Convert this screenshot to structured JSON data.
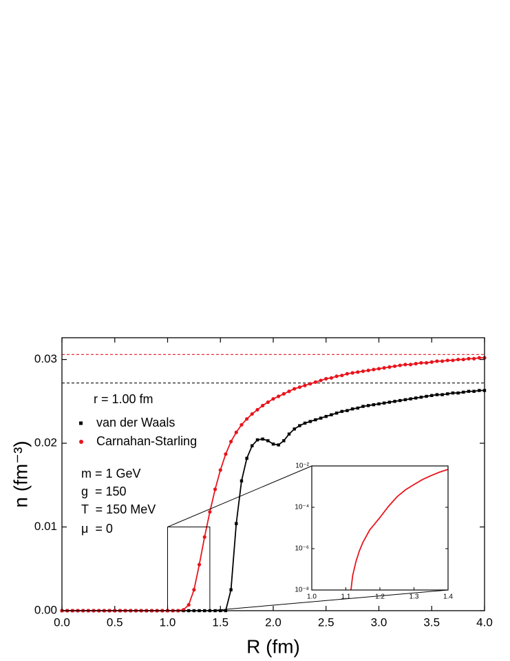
{
  "chart_data": {
    "type": "line",
    "xlabel": "R (fm)",
    "ylabel": "n (fm⁻³)",
    "xlim": [
      0,
      4.0
    ],
    "ylim": [
      0,
      0.0326
    ],
    "xticks": [
      {
        "value": 0,
        "label": "0.0"
      },
      {
        "value": 0.5,
        "label": "0.5"
      },
      {
        "value": 1.0,
        "label": "1.0"
      },
      {
        "value": 1.5,
        "label": "1.5"
      },
      {
        "value": 2.0,
        "label": "2.0"
      },
      {
        "value": 2.5,
        "label": "2.5"
      },
      {
        "value": 3.0,
        "label": "3.0"
      },
      {
        "value": 3.5,
        "label": "3.5"
      },
      {
        "value": 4.0,
        "label": "4.0"
      }
    ],
    "yticks": [
      {
        "value": 0,
        "label": "0.00"
      },
      0.01,
      0.02,
      0.03
    ],
    "annotations": [
      "r = 1.00 fm",
      "m = 1 GeV",
      "g  = 150",
      "T  = 150 MeV",
      "μ  = 0"
    ],
    "hlines": [
      {
        "value": 0.0306,
        "color": "#e8141c"
      },
      {
        "value": 0.0272,
        "color": "#222222"
      }
    ],
    "x": [
      0,
      0.05,
      0.1,
      0.15,
      0.2,
      0.25,
      0.3,
      0.35,
      0.4,
      0.45,
      0.5,
      0.55,
      0.6,
      0.65,
      0.7,
      0.75,
      0.8,
      0.85,
      0.9,
      0.95,
      1.0,
      1.05,
      1.1,
      1.15,
      1.2,
      1.25,
      1.3,
      1.35,
      1.4,
      1.45,
      1.5,
      1.55,
      1.6,
      1.65,
      1.7,
      1.75,
      1.8,
      1.85,
      1.9,
      1.95,
      2.0,
      2.05,
      2.1,
      2.15,
      2.2,
      2.25,
      2.3,
      2.35,
      2.4,
      2.45,
      2.5,
      2.55,
      2.6,
      2.65,
      2.7,
      2.75,
      2.8,
      2.85,
      2.9,
      2.95,
      3.0,
      3.05,
      3.1,
      3.15,
      3.2,
      3.25,
      3.3,
      3.35,
      3.4,
      3.45,
      3.5,
      3.55,
      3.6,
      3.65,
      3.7,
      3.75,
      3.8,
      3.85,
      3.9,
      3.95,
      4.0
    ],
    "series": [
      {
        "name": "van der Waals",
        "color": "#000000",
        "marker": "square",
        "values": [
          0,
          0,
          0,
          0,
          0,
          0,
          0,
          0,
          0,
          0,
          0,
          0,
          0,
          0,
          0,
          0,
          0,
          0,
          0,
          0,
          0,
          0,
          0,
          0,
          0,
          0,
          0,
          0,
          0,
          0,
          0,
          0,
          0.0025,
          0.0104,
          0.0155,
          0.0182,
          0.0197,
          0.0204,
          0.0205,
          0.0203,
          0.0199,
          0.0198,
          0.0203,
          0.0211,
          0.0217,
          0.0221,
          0.0224,
          0.0226,
          0.0228,
          0.023,
          0.0232,
          0.0234,
          0.0236,
          0.0238,
          0.0239,
          0.0241,
          0.0242,
          0.0244,
          0.0245,
          0.0246,
          0.0247,
          0.0248,
          0.0249,
          0.025,
          0.0251,
          0.0252,
          0.0253,
          0.0254,
          0.0255,
          0.0256,
          0.0257,
          0.0258,
          0.0258,
          0.0259,
          0.026,
          0.026,
          0.0261,
          0.0262,
          0.0262,
          0.0263,
          0.0263
        ]
      },
      {
        "name": "Carnahan-Starling",
        "color": "#e8141c",
        "marker": "circle",
        "values": [
          0,
          0,
          0,
          0,
          0,
          0,
          0,
          0,
          0,
          0,
          0,
          0,
          0,
          0,
          0,
          0,
          0,
          0,
          0,
          0,
          0,
          0,
          0,
          0.0001,
          0.0007,
          0.0025,
          0.0055,
          0.0088,
          0.0118,
          0.0145,
          0.0168,
          0.0187,
          0.0202,
          0.0213,
          0.0222,
          0.0229,
          0.0235,
          0.024,
          0.0245,
          0.0249,
          0.0253,
          0.0256,
          0.0259,
          0.0262,
          0.0265,
          0.0267,
          0.0269,
          0.0271,
          0.0273,
          0.0275,
          0.0277,
          0.0278,
          0.028,
          0.0281,
          0.0283,
          0.0284,
          0.0285,
          0.0286,
          0.0287,
          0.0288,
          0.0289,
          0.029,
          0.0291,
          0.0292,
          0.0293,
          0.0294,
          0.0294,
          0.0295,
          0.0296,
          0.0296,
          0.0297,
          0.0298,
          0.0298,
          0.0299,
          0.0299,
          0.03,
          0.03,
          0.0301,
          0.0301,
          0.0302,
          0.0302
        ]
      }
    ],
    "inset": {
      "type": "line",
      "log_y": true,
      "xlim": [
        1.0,
        1.4
      ],
      "ylim": [
        1e-08,
        0.01
      ],
      "xticks": [
        {
          "value": 1.0,
          "label": "1.0"
        },
        {
          "value": 1.1,
          "label": "1.1"
        },
        {
          "value": 1.2,
          "label": "1.2"
        },
        {
          "value": 1.3,
          "label": "1.3"
        },
        {
          "value": 1.4,
          "label": "1.4"
        }
      ],
      "yticks": [
        {
          "value": 1e-08,
          "label": "10⁻⁸"
        },
        {
          "value": 1e-06,
          "label": "10⁻⁶"
        },
        {
          "value": 0.0001,
          "label": "10⁻⁴"
        },
        {
          "value": 0.01,
          "label": "10⁻²"
        }
      ],
      "x": [
        1.115,
        1.12,
        1.13,
        1.14,
        1.15,
        1.17,
        1.2,
        1.225,
        1.25,
        1.275,
        1.3,
        1.325,
        1.35,
        1.375,
        1.4
      ],
      "color": "#e8141c",
      "values": [
        1e-08,
        5e-08,
        2.5e-07,
        8e-07,
        2e-06,
        8e-06,
        3.2e-05,
        0.00011,
        0.00032,
        0.0007,
        0.00126,
        0.0022,
        0.0034,
        0.005,
        0.0068
      ]
    }
  }
}
